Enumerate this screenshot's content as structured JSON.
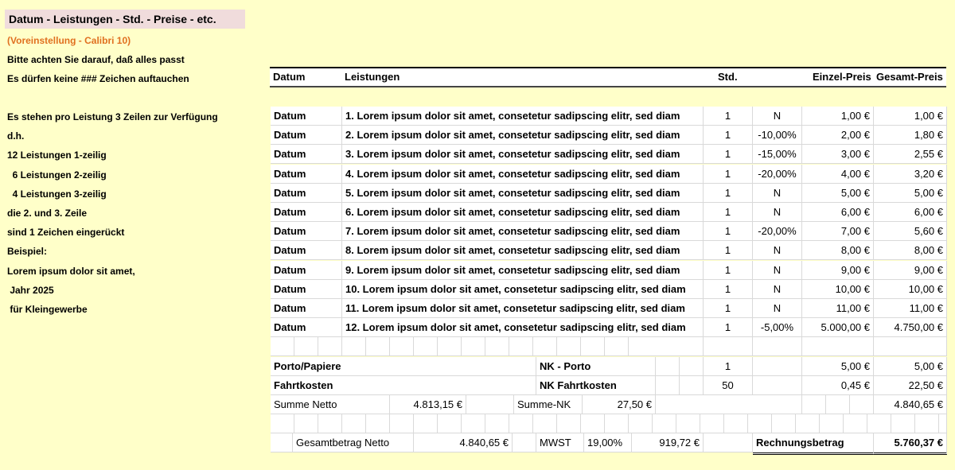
{
  "left": {
    "title": "Datum - Leistungen - Std. - Preise - etc.",
    "preset": "(Voreinstellung - Calibri 10)",
    "notes": [
      "Bitte  achten  Sie  darauf,  daß alles passt",
      "Es dürfen keine  ###  Zeichen auftauchen"
    ],
    "info": [
      "Es stehen pro Leistung 3 Zeilen zur Verfügung",
      "d.h.",
      "12 Leistungen 1-zeilig",
      "  6 Leistungen 2-zeilig",
      "  4 Leistungen 3-zeilig",
      "die 2. und 3. Zeile",
      "sind 1 Zeichen eingerückt",
      "Beispiel:",
      "Lorem ipsum dolor sit amet,",
      " Jahr 2025",
      " für Kleingewerbe"
    ]
  },
  "header": {
    "datum": "Datum",
    "leistungen": "Leistungen",
    "std": "Std.",
    "einzel": "Einzel-Preis",
    "gesamt": "Gesamt-Preis"
  },
  "rows": [
    [
      "Datum",
      "1. Lorem ipsum dolor sit amet, consetetur sadipscing elitr, sed diam",
      "1",
      "N",
      "1,00 €",
      "1,00 €"
    ],
    [
      "Datum",
      "2. Lorem ipsum dolor sit amet, consetetur sadipscing elitr, sed diam",
      "1",
      "-10,00%",
      "2,00 €",
      "1,80 €"
    ],
    [
      "Datum",
      "3. Lorem ipsum dolor sit amet, consetetur sadipscing elitr, sed diam",
      "1",
      "-15,00%",
      "3,00 €",
      "2,55 €"
    ],
    [
      "Datum",
      "4. Lorem ipsum dolor sit amet, consetetur sadipscing elitr, sed diam",
      "1",
      "-20,00%",
      "4,00 €",
      "3,20 €"
    ],
    [
      "Datum",
      "5. Lorem ipsum dolor sit amet, consetetur sadipscing elitr, sed diam",
      "1",
      "N",
      "5,00 €",
      "5,00 €"
    ],
    [
      "Datum",
      "6. Lorem ipsum dolor sit amet, consetetur sadipscing elitr, sed diam",
      "1",
      "N",
      "6,00 €",
      "6,00 €"
    ],
    [
      "Datum",
      "7. Lorem ipsum dolor sit amet, consetetur sadipscing elitr, sed diam",
      "1",
      "-20,00%",
      "7,00 €",
      "5,60 €"
    ],
    [
      "Datum",
      "8. Lorem ipsum dolor sit amet, consetetur sadipscing elitr, sed diam",
      "1",
      "N",
      "8,00 €",
      "8,00 €"
    ],
    [
      "Datum",
      "9. Lorem ipsum dolor sit amet, consetetur sadipscing elitr, sed diam",
      "1",
      "N",
      "9,00 €",
      "9,00 €"
    ],
    [
      "Datum",
      "10. Lorem ipsum dolor sit amet, consetetur sadipscing elitr, sed diam",
      "1",
      "N",
      "10,00 €",
      "10,00 €"
    ],
    [
      "Datum",
      "11. Lorem ipsum dolor sit amet, consetetur sadipscing elitr, sed diam",
      "1",
      "N",
      "11,00 €",
      "11,00 €"
    ],
    [
      "Datum",
      "12. Lorem ipsum dolor sit amet, consetetur sadipscing elitr, sed diam",
      "1",
      "-5,00%",
      "5.000,00 €",
      "4.750,00 €"
    ]
  ],
  "extras": {
    "porto_label": "Porto/Papiere",
    "nk_porto": "NK - Porto",
    "porto_std": "1",
    "porto_einzel": "5,00 €",
    "porto_gesamt": "5,00 €",
    "fahrt_label": "Fahrtkosten",
    "nk_fahrt": "NK Fahrtkosten",
    "fahrt_std": "50",
    "fahrt_einzel": "0,45 €",
    "fahrt_gesamt": "22,50 €"
  },
  "totals": {
    "summe_netto_label": "Summe Netto",
    "summe_netto": "4.813,15 €",
    "summe_nk_label": "Summe-NK",
    "summe_nk": "27,50 €",
    "zwischensumme": "4.840,65 €",
    "gesamt_netto_label": "Gesamtbetrag Netto",
    "gesamt_netto": "4.840,65 €",
    "mwst_label": "MWST",
    "mwst_rate": "19,00%",
    "mwst": "919,72 €",
    "rechnung_label": "Rechnungsbetrag",
    "rechnung": "5.760,37 €"
  },
  "colors": {
    "background": "#ffffc9",
    "title_bg": "#f0dcdc",
    "preset_text": "#e07020"
  }
}
